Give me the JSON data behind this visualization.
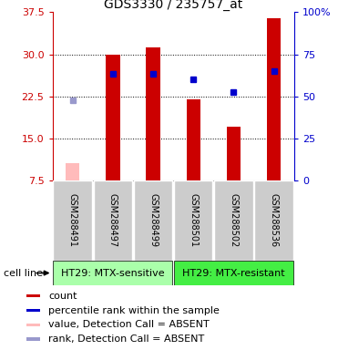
{
  "title": "GDS3330 / 235757_at",
  "samples": [
    "GSM288491",
    "GSM288497",
    "GSM288499",
    "GSM288501",
    "GSM288502",
    "GSM288536"
  ],
  "count_values": [
    10.5,
    30.0,
    31.2,
    22.0,
    17.0,
    36.5
  ],
  "count_absent": [
    true,
    false,
    false,
    false,
    false,
    false
  ],
  "rank_values": [
    21.8,
    26.5,
    26.5,
    25.5,
    23.2,
    27.0
  ],
  "rank_absent": [
    true,
    false,
    false,
    false,
    false,
    false
  ],
  "ylim_left": [
    7.5,
    37.5
  ],
  "ylim_right": [
    0,
    100
  ],
  "yticks_left": [
    7.5,
    15.0,
    22.5,
    30.0,
    37.5
  ],
  "yticks_right": [
    0,
    25,
    50,
    75,
    100
  ],
  "groups": [
    {
      "label": "HT29: MTX-sensitive",
      "color": "#90ee90",
      "start": 0,
      "end": 3
    },
    {
      "label": "HT29: MTX-resistant",
      "color": "#44dd44",
      "start": 3,
      "end": 6
    }
  ],
  "bar_width": 0.35,
  "bar_color_present": "#cc0000",
  "bar_color_absent": "#ffbbbb",
  "rank_color_present": "#0000cc",
  "rank_color_absent": "#9999cc",
  "left_axis_color": "#cc0000",
  "right_axis_color": "#0000cc",
  "sample_area_color": "#cccccc",
  "group1_color": "#aaffaa",
  "group2_color": "#44ee44",
  "cell_line_label": "cell line",
  "legend_items": [
    {
      "color": "#cc0000",
      "label": "count"
    },
    {
      "color": "#0000cc",
      "label": "percentile rank within the sample"
    },
    {
      "color": "#ffbbbb",
      "label": "value, Detection Call = ABSENT"
    },
    {
      "color": "#9999cc",
      "label": "rank, Detection Call = ABSENT"
    }
  ],
  "title_fontsize": 10,
  "tick_fontsize": 8,
  "label_fontsize": 8,
  "legend_fontsize": 8
}
